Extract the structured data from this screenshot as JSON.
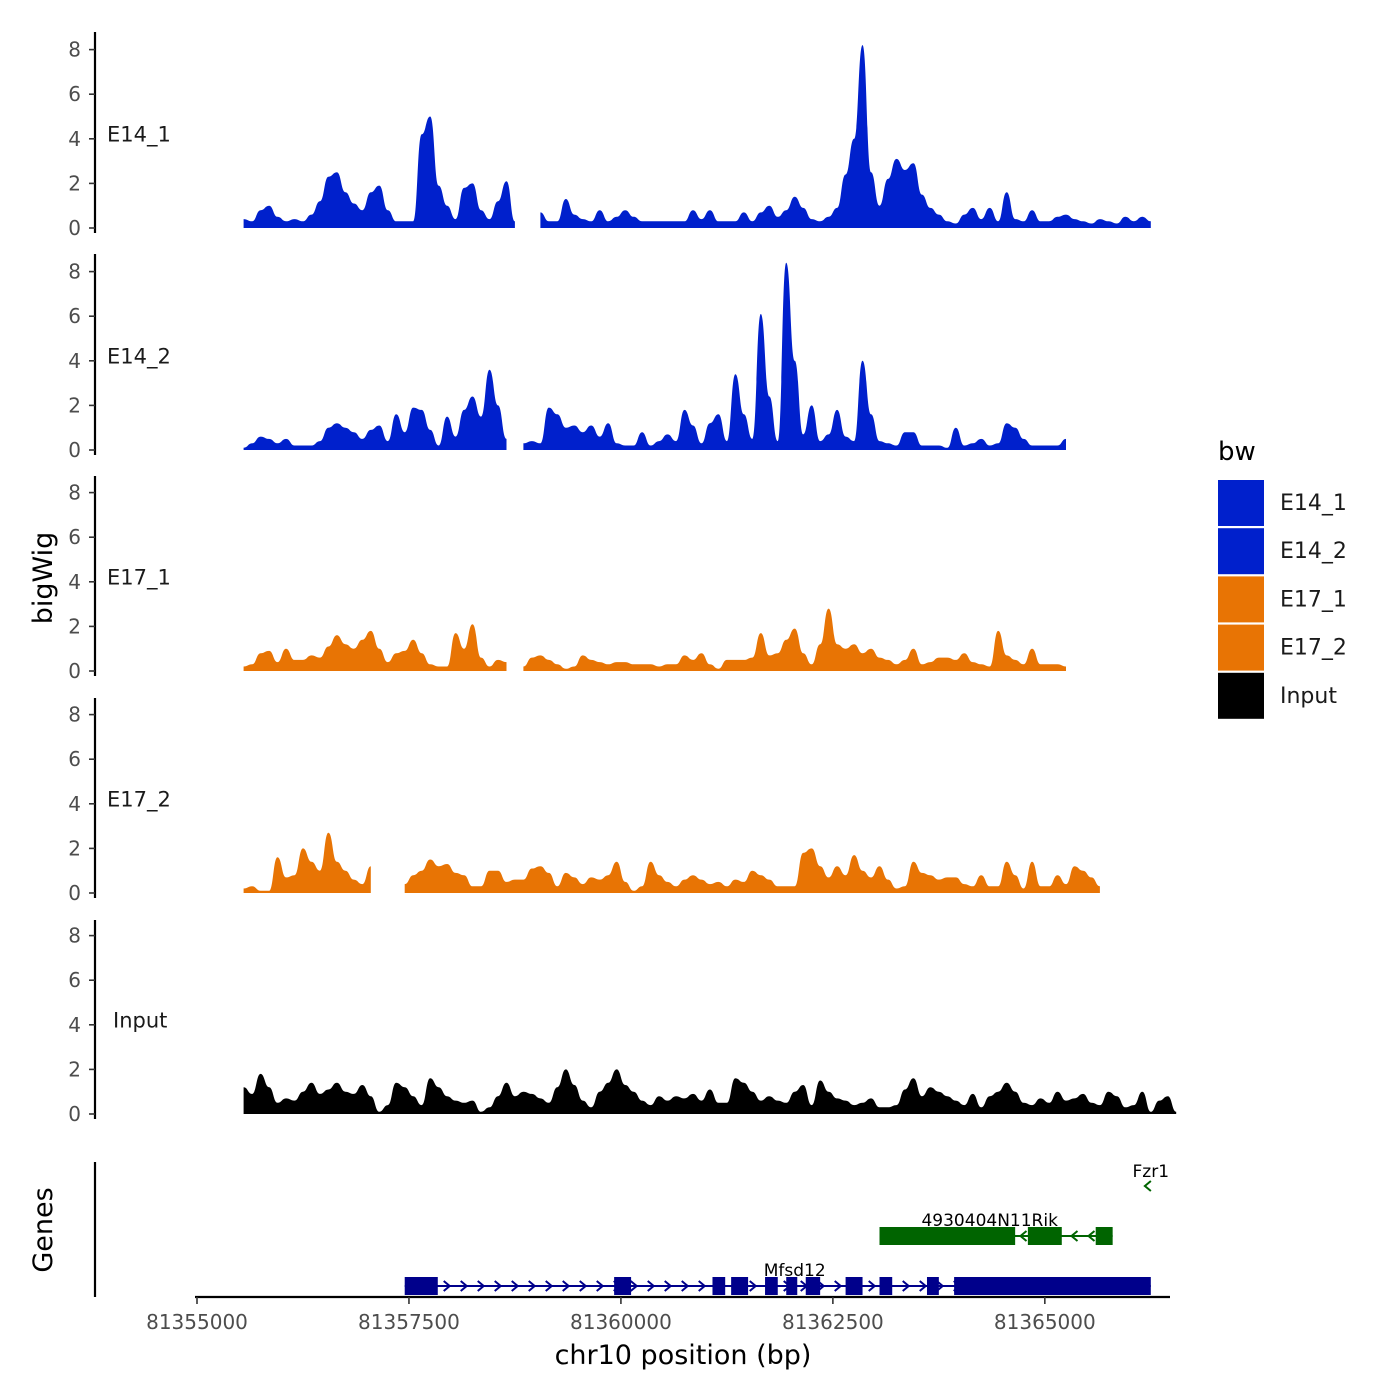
{
  "colors": {
    "E14": "#0020cc",
    "E17": "#e87404",
    "Input": "#000000",
    "gene_plus": "#00008b",
    "gene_minus": "#006400"
  },
  "chart_data": [
    {
      "type": "area",
      "panel": "bigWig coverage",
      "ylabel": "bigWig",
      "ylim": [
        0,
        8.5
      ],
      "yticks": [
        0,
        2,
        4,
        6,
        8
      ],
      "xlim": [
        81355000,
        81366500
      ],
      "x_start": 81355550,
      "x_step": 100,
      "series": [
        {
          "name": "E14_1",
          "color": "#0020cc",
          "values": [
            0.4,
            0.3,
            0.8,
            1.0,
            0.5,
            0.3,
            0.4,
            0.3,
            0.6,
            1.2,
            2.3,
            2.5,
            1.6,
            1.1,
            0.8,
            1.6,
            1.9,
            0.8,
            0.3,
            0.3,
            0.3,
            4.2,
            5.0,
            1.9,
            1.0,
            0.4,
            1.8,
            2.0,
            0.8,
            0.4,
            1.2,
            2.1,
            0.3,
            null,
            null,
            0.7,
            0.3,
            0.3,
            1.3,
            0.6,
            0.4,
            0.3,
            0.8,
            0.3,
            0.5,
            0.8,
            0.5,
            0.3,
            0.3,
            0.3,
            0.3,
            0.3,
            0.3,
            0.8,
            0.4,
            0.8,
            0.3,
            0.3,
            0.3,
            0.7,
            0.3,
            0.7,
            1.0,
            0.5,
            0.8,
            1.4,
            0.9,
            0.4,
            0.3,
            0.5,
            0.9,
            2.4,
            4.0,
            8.2,
            2.5,
            1.0,
            2.2,
            3.1,
            2.6,
            2.9,
            1.5,
            0.9,
            0.6,
            0.3,
            0.2,
            0.6,
            0.9,
            0.4,
            0.9,
            0.3,
            1.6,
            0.4,
            0.3,
            0.8,
            0.3,
            0.3,
            0.5,
            0.6,
            0.4,
            0.3,
            0.2,
            0.4,
            0.3,
            0.2,
            0.5,
            0.3,
            0.5,
            0.3
          ]
        },
        {
          "name": "E14_2",
          "color": "#0020cc",
          "values": [
            0.1,
            0.3,
            0.6,
            0.5,
            0.3,
            0.5,
            0.2,
            0.2,
            0.2,
            0.4,
            1.0,
            1.2,
            1.0,
            0.8,
            0.5,
            0.9,
            1.1,
            0.4,
            1.6,
            0.8,
            1.9,
            1.8,
            0.9,
            0.2,
            1.5,
            0.6,
            1.8,
            2.4,
            1.5,
            3.6,
            2.0,
            0.5,
            null,
            0.3,
            0.4,
            0.3,
            1.9,
            1.6,
            1.0,
            1.1,
            0.8,
            1.1,
            0.6,
            1.2,
            0.3,
            0.2,
            0.2,
            0.8,
            0.2,
            0.4,
            0.7,
            0.4,
            1.8,
            1.1,
            0.3,
            1.2,
            1.6,
            0.4,
            3.4,
            1.6,
            0.5,
            6.1,
            2.4,
            0.4,
            8.4,
            4.0,
            0.7,
            2.0,
            0.4,
            0.7,
            1.8,
            0.6,
            0.4,
            4.0,
            1.6,
            0.4,
            0.3,
            0.2,
            0.8,
            0.8,
            0.2,
            0.2,
            0.2,
            0.1,
            1.0,
            0.2,
            0.3,
            0.5,
            0.2,
            0.3,
            1.2,
            1.0,
            0.5,
            0.2,
            0.2,
            0.2,
            0.2,
            0.5
          ]
        },
        {
          "name": "E17_1",
          "color": "#e87404",
          "values": [
            0.2,
            0.3,
            0.8,
            0.9,
            0.4,
            1.0,
            0.5,
            0.5,
            0.7,
            0.6,
            1.1,
            1.6,
            1.2,
            1.0,
            1.4,
            1.8,
            1.0,
            0.4,
            0.8,
            0.9,
            1.4,
            0.8,
            0.3,
            0.2,
            0.2,
            1.7,
            1.0,
            2.1,
            0.6,
            0.2,
            0.5,
            0.4,
            null,
            0.2,
            0.6,
            0.7,
            0.5,
            0.3,
            0.1,
            0.2,
            0.7,
            0.5,
            0.4,
            0.3,
            0.4,
            0.4,
            0.3,
            0.3,
            0.3,
            0.2,
            0.3,
            0.3,
            0.7,
            0.5,
            0.8,
            0.3,
            0.1,
            0.5,
            0.5,
            0.5,
            0.6,
            1.7,
            0.7,
            0.8,
            1.4,
            1.9,
            0.8,
            0.3,
            1.2,
            2.8,
            1.2,
            1.0,
            1.2,
            0.8,
            1.0,
            0.6,
            0.5,
            0.3,
            0.5,
            1.0,
            0.3,
            0.4,
            0.6,
            0.6,
            0.5,
            0.8,
            0.4,
            0.3,
            0.2,
            1.8,
            0.7,
            0.5,
            0.3,
            1.0,
            0.3,
            0.3,
            0.3,
            0.2
          ]
        },
        {
          "name": "E17_2",
          "color": "#e87404",
          "values": [
            0.2,
            0.3,
            0.1,
            0.1,
            1.6,
            0.7,
            0.8,
            2.0,
            1.4,
            1.0,
            2.7,
            1.4,
            1.0,
            0.6,
            0.4,
            1.2,
            null,
            null,
            null,
            0.4,
            0.8,
            1.0,
            1.5,
            1.2,
            1.3,
            0.9,
            0.8,
            0.3,
            0.3,
            1.0,
            1.0,
            0.5,
            0.6,
            0.6,
            1.1,
            1.2,
            0.9,
            0.3,
            0.9,
            0.7,
            0.4,
            0.7,
            0.6,
            0.8,
            1.4,
            0.5,
            0.1,
            0.3,
            1.4,
            0.8,
            0.5,
            0.3,
            0.6,
            0.8,
            0.6,
            0.4,
            0.5,
            0.3,
            0.6,
            0.5,
            1.0,
            0.8,
            0.6,
            0.3,
            0.3,
            0.3,
            1.8,
            2.0,
            1.2,
            0.7,
            1.2,
            0.8,
            1.7,
            1.0,
            0.7,
            1.2,
            0.6,
            0.2,
            0.3,
            1.4,
            0.9,
            0.8,
            0.6,
            0.7,
            0.7,
            0.4,
            0.3,
            0.8,
            0.3,
            0.3,
            1.4,
            0.8,
            0.2,
            1.4,
            0.3,
            0.3,
            0.8,
            0.4,
            1.2,
            1.0,
            0.7,
            0.3
          ]
        },
        {
          "name": "Input",
          "color": "#000000",
          "values": [
            1.2,
            0.9,
            1.8,
            1.2,
            0.5,
            0.7,
            0.6,
            1.0,
            1.4,
            0.9,
            1.1,
            1.4,
            1.0,
            0.9,
            1.3,
            0.8,
            0.1,
            0.4,
            1.4,
            1.2,
            0.8,
            0.4,
            1.6,
            1.2,
            0.8,
            0.6,
            0.5,
            0.6,
            0.1,
            0.3,
            0.8,
            1.4,
            0.8,
            1.0,
            0.9,
            0.7,
            0.5,
            1.2,
            2.0,
            1.3,
            0.6,
            0.3,
            1.0,
            1.4,
            2.0,
            1.3,
            1.0,
            0.6,
            0.4,
            0.8,
            0.6,
            0.8,
            0.7,
            0.9,
            0.6,
            1.1,
            0.5,
            0.5,
            1.6,
            1.4,
            1.0,
            0.6,
            0.8,
            0.6,
            0.5,
            1.0,
            1.3,
            0.4,
            1.5,
            1.0,
            0.7,
            0.6,
            0.4,
            0.5,
            0.7,
            0.3,
            0.3,
            0.4,
            1.1,
            1.6,
            0.8,
            1.2,
            1.0,
            0.8,
            0.6,
            0.4,
            0.9,
            0.3,
            0.8,
            1.0,
            1.4,
            1.0,
            0.5,
            0.4,
            0.7,
            0.5,
            1.0,
            0.6,
            0.7,
            0.9,
            0.5,
            0.4,
            1.0,
            0.8,
            0.3,
            0.4,
            1.0,
            0.1,
            0.6,
            0.8,
            0.1
          ]
        }
      ],
      "legend": {
        "title": "bw",
        "position": "right",
        "entries": [
          {
            "label": "E14_1",
            "color": "#0020cc"
          },
          {
            "label": "E14_2",
            "color": "#0020cc"
          },
          {
            "label": "E17_1",
            "color": "#e87404"
          },
          {
            "label": "E17_2",
            "color": "#e87404"
          },
          {
            "label": "Input",
            "color": "#000000"
          }
        ]
      }
    },
    {
      "type": "gene-track",
      "panel": "Genes",
      "ylabel": "Genes",
      "xlabel": "chr10 position (bp)",
      "xlim": [
        81355000,
        81366500
      ],
      "xticks": [
        81355000,
        81357500,
        81360000,
        81362500,
        81365000
      ],
      "xtick_labels": [
        "81355000",
        "81357500",
        "81360000",
        "81362500",
        "81365000"
      ],
      "genes": [
        {
          "name": "Mfsd12",
          "strand": "+",
          "color": "#00008b",
          "lane": 0,
          "start": 81357450,
          "end": 81366250,
          "exons": [
            [
              81357450,
              81357840
            ],
            [
              81359920,
              81360120
            ],
            [
              81361080,
              81361230
            ],
            [
              81361300,
              81361500
            ],
            [
              81361700,
              81361850
            ],
            [
              81361950,
              81362080
            ],
            [
              81362180,
              81362350
            ],
            [
              81362650,
              81362850
            ],
            [
              81363050,
              81363200
            ],
            [
              81363610,
              81363750
            ],
            [
              81363930,
              81366250
            ]
          ]
        },
        {
          "name": "4930404N11Rik",
          "strand": "-",
          "color": "#006400",
          "lane": 1,
          "start": 81363050,
          "end": 81365800,
          "exons": [
            [
              81363050,
              81364650
            ],
            [
              81364800,
              81365200
            ],
            [
              81365600,
              81365800
            ]
          ]
        },
        {
          "name": "Fzr1",
          "strand": "-",
          "color": "#006400",
          "lane": 2,
          "start": 81366180,
          "end": 81366500,
          "exons": []
        }
      ]
    }
  ]
}
